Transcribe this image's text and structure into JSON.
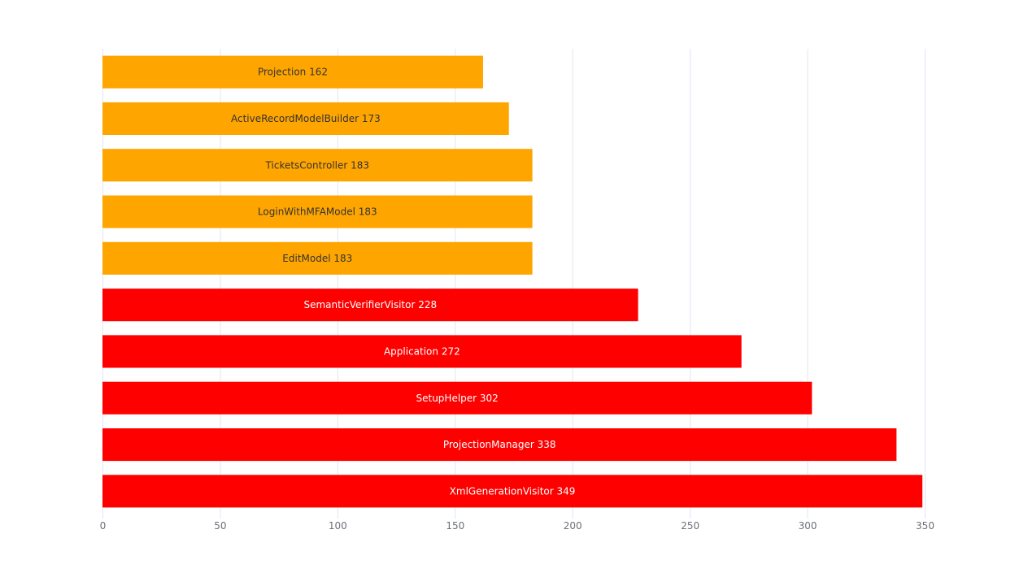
{
  "chart_data": {
    "type": "bar",
    "orientation": "horizontal",
    "categories": [
      "XmlGenerationVisitor",
      "ProjectionManager",
      "SetupHelper",
      "Application",
      "SemanticVerifierVisitor",
      "EditModel",
      "LoginWithMFAModel",
      "TicketsController",
      "ActiveRecordModelBuilder",
      "Projection"
    ],
    "values": [
      349,
      338,
      302,
      272,
      228,
      183,
      183,
      183,
      173,
      162
    ],
    "bar_colors": [
      "#ff0000",
      "#ff0000",
      "#ff0000",
      "#ff0000",
      "#ff0000",
      "#ffa500",
      "#ffa500",
      "#ffa500",
      "#ffa500",
      "#ffa500"
    ],
    "label_colors": [
      "#ffffff",
      "#ffffff",
      "#ffffff",
      "#ffffff",
      "#ffffff",
      "#333333",
      "#333333",
      "#333333",
      "#333333",
      "#333333"
    ],
    "data_labels": [
      "XmlGenerationVisitor 349",
      "ProjectionManager 338",
      "SetupHelper 302",
      "Application 272",
      "SemanticVerifierVisitor 228",
      "EditModel 183",
      "LoginWithMFAModel 183",
      "TicketsController 183",
      "ActiveRecordModelBuilder 173",
      "Projection 162"
    ],
    "xlim": [
      0,
      350
    ],
    "x_ticks": [
      "0",
      "50",
      "100",
      "150",
      "200",
      "250",
      "300",
      "350"
    ],
    "grid": true,
    "title": "",
    "xlabel": "",
    "ylabel": ""
  }
}
